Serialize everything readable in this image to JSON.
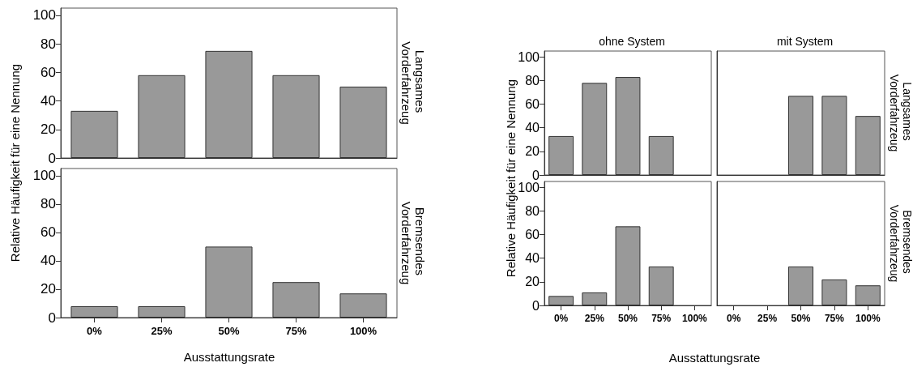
{
  "chart_data": [
    {
      "type": "bar",
      "ylabel": "Relative Häufigkeit für eine Nennung",
      "annotations": [
        "Langsames Vorderfahrzeug"
      ],
      "categories": [
        "0%",
        "25%",
        "50%",
        "75%",
        "100%"
      ],
      "values": [
        33,
        58,
        75,
        58,
        50
      ],
      "color": "#999999",
      "ylim": [
        0,
        105
      ],
      "yticks": [
        0,
        20,
        40,
        60,
        80,
        100
      ],
      "tick_labels": "y"
    },
    {
      "type": "bar",
      "xlabel": "Ausstattungsrate",
      "annotations": [
        "Bremsendes Vorderfahrzeug"
      ],
      "categories": [
        "0%",
        "25%",
        "50%",
        "75%",
        "100%"
      ],
      "values": [
        8,
        8,
        50,
        25,
        17
      ],
      "color": "#999999",
      "ylim": [
        0,
        105
      ],
      "yticks": [
        0,
        20,
        40,
        60,
        80,
        100
      ]
    },
    {
      "type": "bar",
      "title": "ohne System",
      "ylabel": "Relative Häufigkeit für eine Nennung",
      "categories": [
        "0%",
        "25%",
        "50%",
        "75%",
        "100%"
      ],
      "values": [
        33,
        78,
        83,
        33,
        0
      ],
      "color": "#999999",
      "ylim": [
        0,
        105
      ],
      "yticks": [
        0,
        20,
        40,
        60,
        80,
        100
      ],
      "tick_labels": "y"
    },
    {
      "type": "bar",
      "title": "mit System",
      "annotations": [
        "Langsames Vorderfahrzeug"
      ],
      "categories": [
        "0%",
        "25%",
        "50%",
        "75%",
        "100%"
      ],
      "values": [
        0,
        0,
        67,
        67,
        50
      ],
      "color": "#999999",
      "ylim": [
        0,
        105
      ],
      "yticks": [
        0,
        20,
        40,
        60,
        80,
        100
      ],
      "tick_labels": false
    },
    {
      "type": "bar",
      "xlabel": "Ausstattungsrate",
      "categories": [
        "0%",
        "25%",
        "50%",
        "75%",
        "100%"
      ],
      "values": [
        8,
        11,
        67,
        33,
        0
      ],
      "color": "#999999",
      "ylim": [
        0,
        105
      ],
      "yticks": [
        0,
        20,
        40,
        60,
        80,
        100
      ]
    },
    {
      "type": "bar",
      "annotations": [
        "Bremsendes Vorderfahrzeug"
      ],
      "categories": [
        "0%",
        "25%",
        "50%",
        "75%",
        "100%"
      ],
      "values": [
        0,
        0,
        33,
        22,
        17
      ],
      "color": "#999999",
      "ylim": [
        0,
        105
      ],
      "yticks": [
        0,
        20,
        40,
        60,
        80,
        100
      ],
      "tick_labels": "x"
    }
  ]
}
